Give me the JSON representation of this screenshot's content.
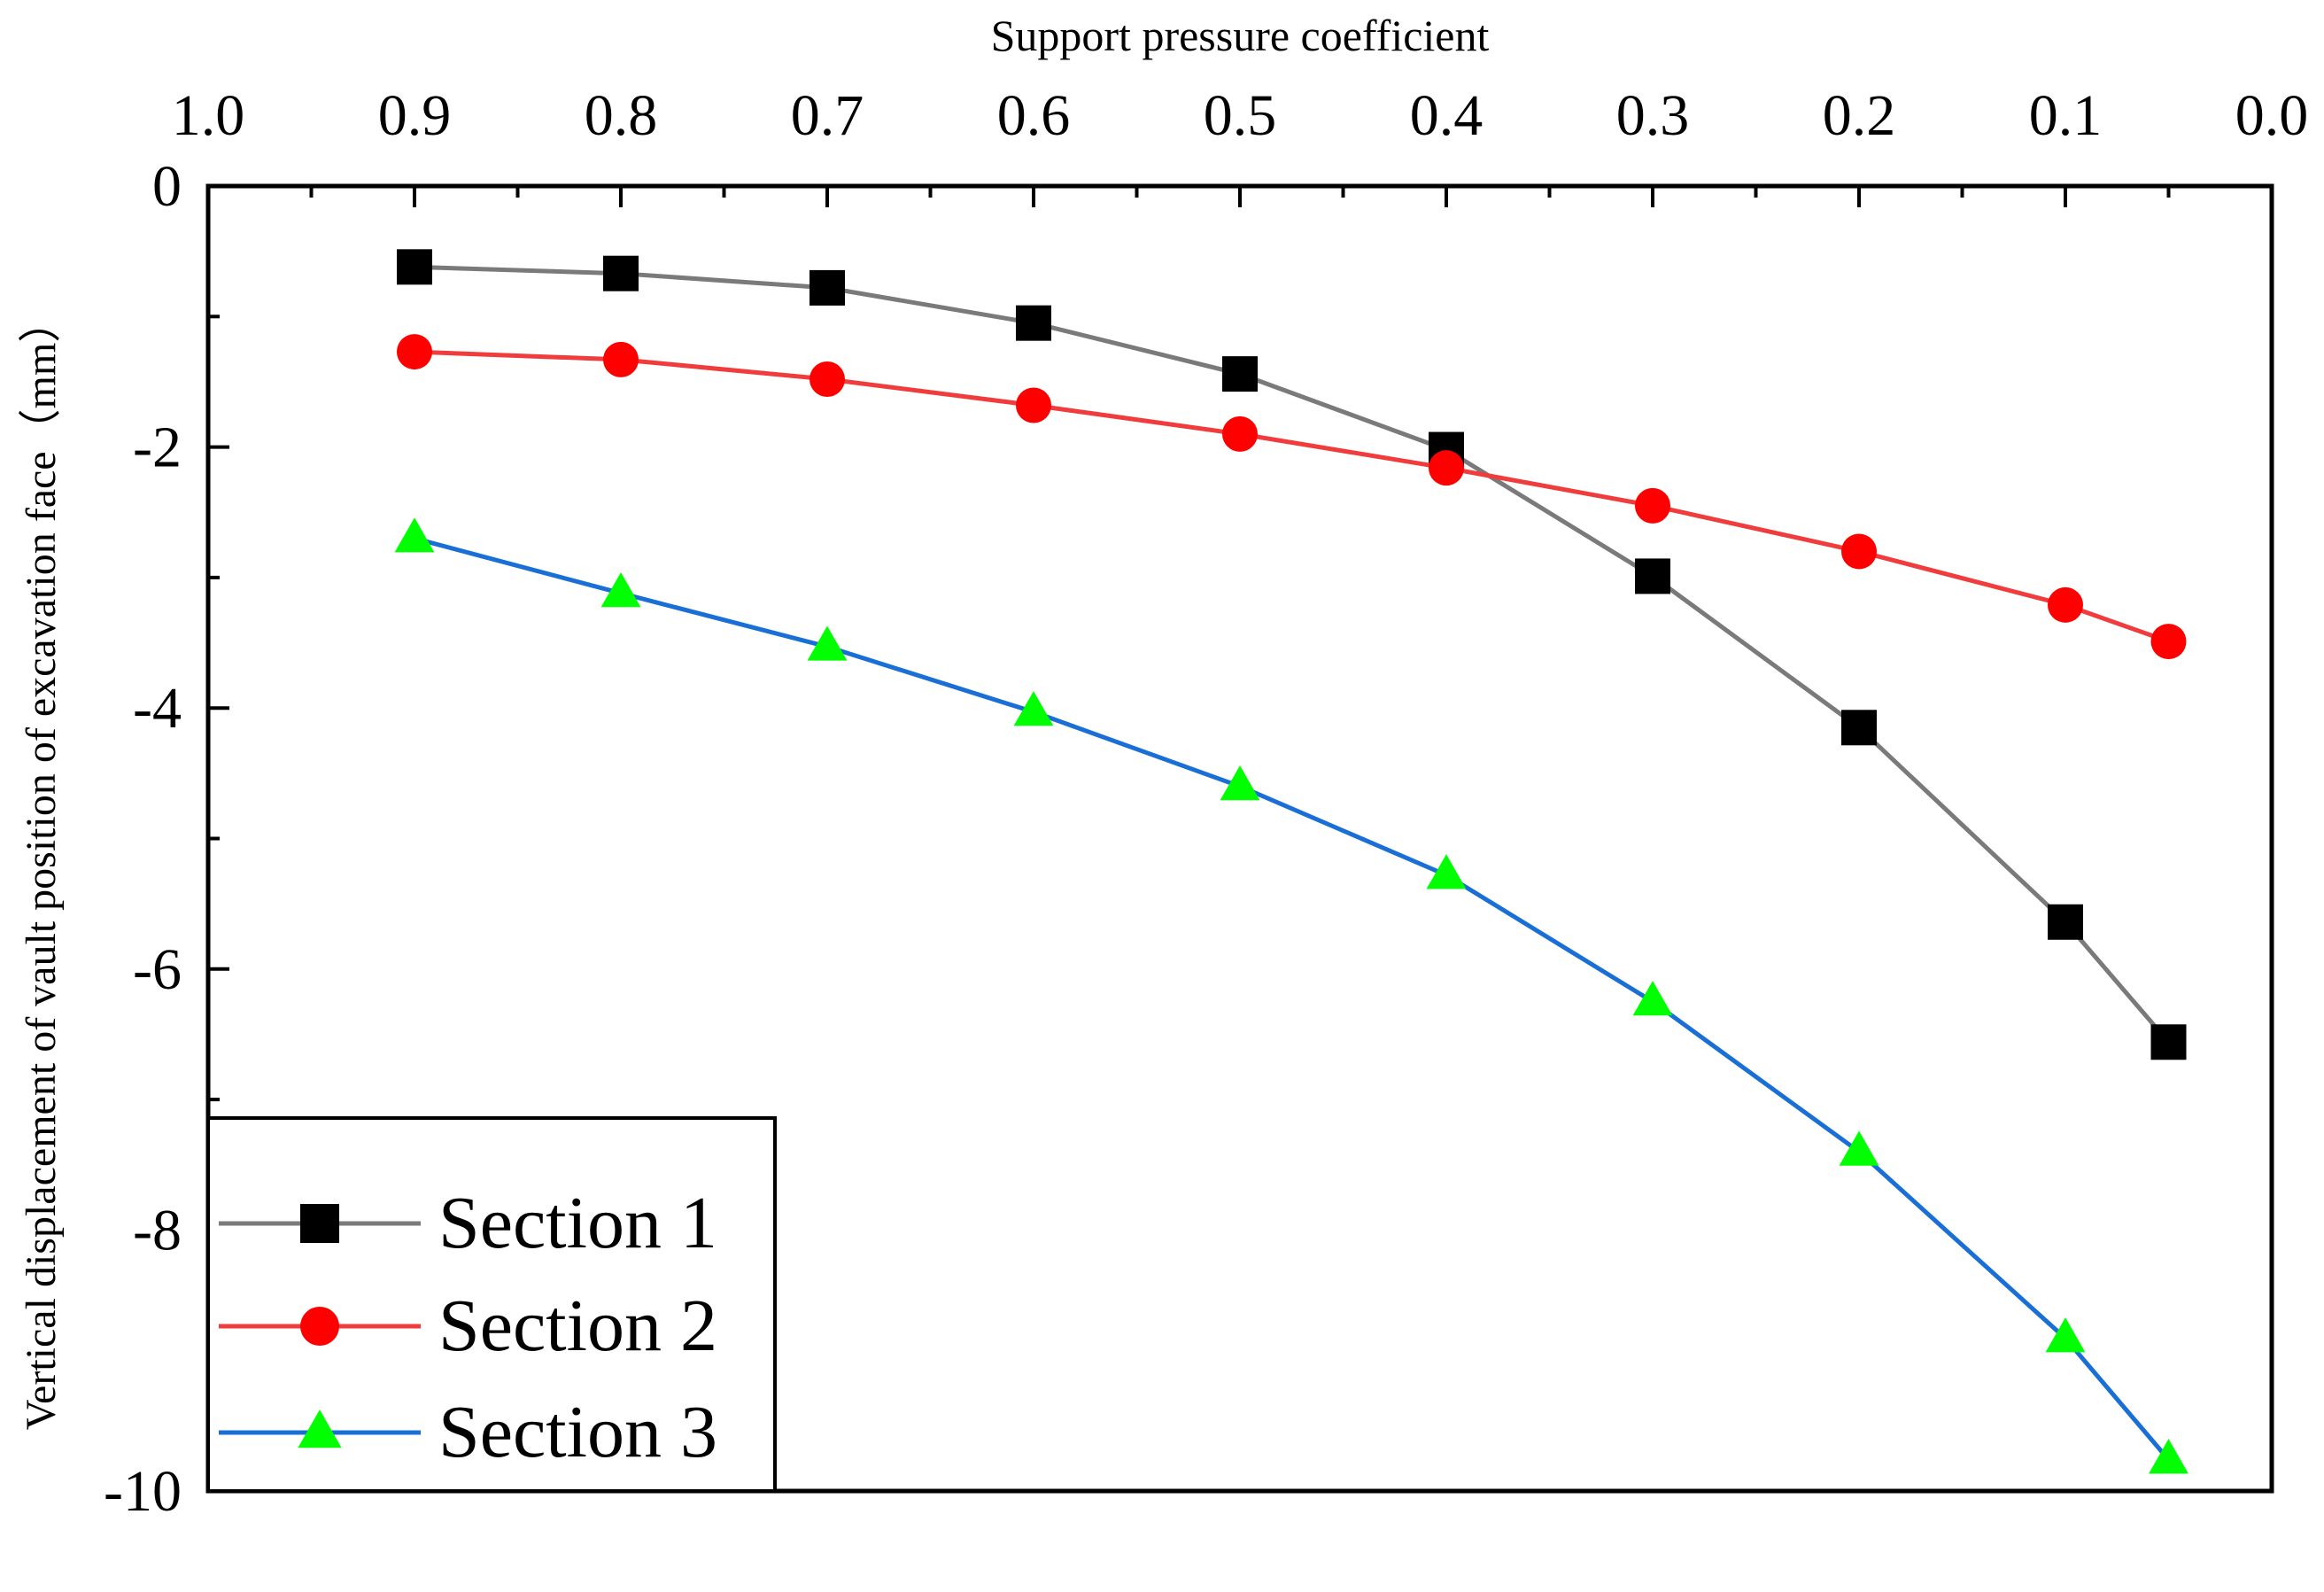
{
  "chart_data": {
    "type": "line",
    "xlabel": "Support pressure coefficient",
    "ylabel": "Vertical displacement of vault position of excavation face（mm）",
    "xlim": [
      1.0,
      0.0
    ],
    "ylim": [
      -10,
      0
    ],
    "x_axis_position": "top",
    "x_ticks": [
      "1.0",
      "0.9",
      "0.8",
      "0.7",
      "0.6",
      "0.5",
      "0.4",
      "0.3",
      "0.2",
      "0.1",
      "0.0"
    ],
    "y_ticks": [
      "0",
      "-2",
      "-4",
      "-6",
      "-8",
      "-10"
    ],
    "legend_position": "bottom-left",
    "grid": false,
    "x": [
      0.9,
      0.8,
      0.7,
      0.6,
      0.5,
      0.4,
      0.3,
      0.2,
      0.1,
      0.05
    ],
    "series": [
      {
        "name": "Section 1",
        "line_color": "#7a7a7a",
        "marker": "square",
        "marker_color": "#000000",
        "values": [
          -0.62,
          -0.67,
          -0.78,
          -1.05,
          -1.44,
          -2.02,
          -2.99,
          -4.15,
          -5.64,
          -6.56
        ]
      },
      {
        "name": "Section 2",
        "line_color": "#f03c3c",
        "marker": "circle",
        "marker_color": "#ff0000",
        "values": [
          -1.27,
          -1.33,
          -1.48,
          -1.68,
          -1.9,
          -2.16,
          -2.45,
          -2.8,
          -3.21,
          -3.49
        ]
      },
      {
        "name": "Section 3",
        "line_color": "#1a6fd6",
        "marker": "triangle",
        "marker_color": "#00ff00",
        "values": [
          -2.7,
          -3.12,
          -3.53,
          -4.03,
          -4.6,
          -5.28,
          -6.25,
          -7.4,
          -8.83,
          -9.76
        ]
      }
    ]
  }
}
